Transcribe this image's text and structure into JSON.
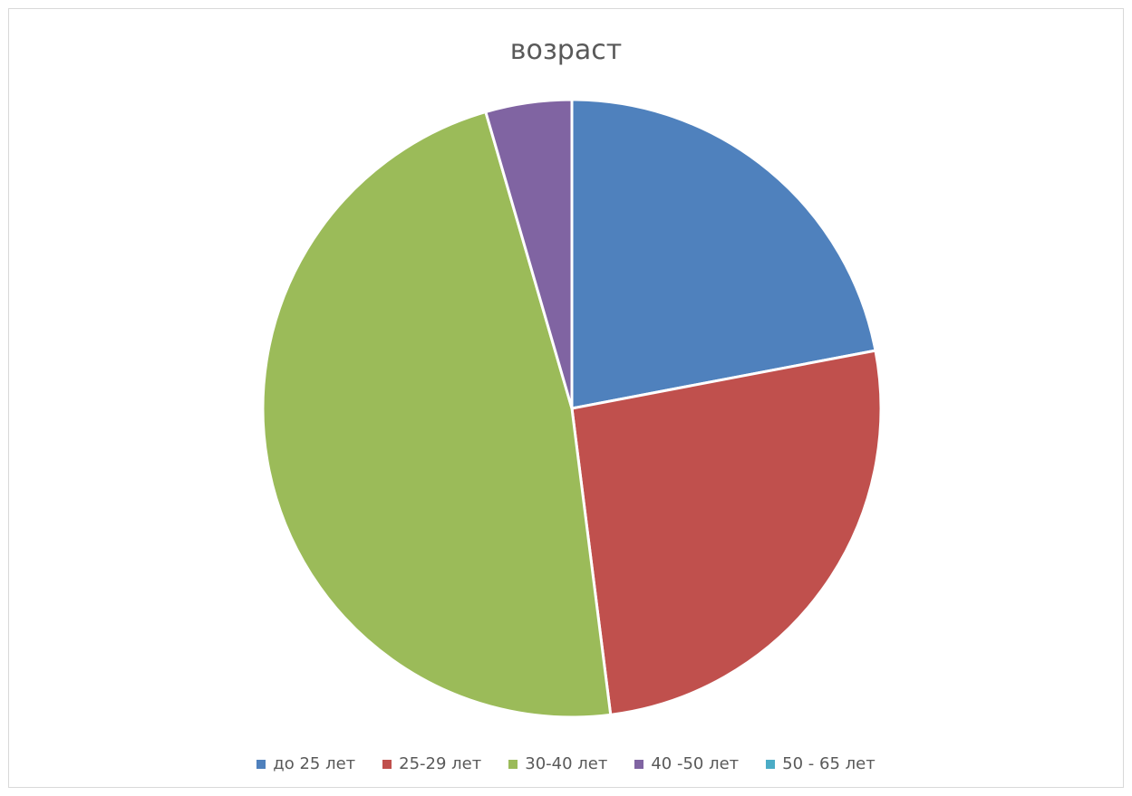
{
  "chart_data": {
    "type": "pie",
    "title": "возраст",
    "categories": [
      "до 25 лет",
      "25-29 лет",
      "30-40 лет",
      "40 -50 лет",
      "50 - 65 лет"
    ],
    "values": [
      22,
      26,
      47.5,
      4.5,
      0
    ],
    "colors": [
      "#4F81BD",
      "#C0504D",
      "#9BBB59",
      "#8064A2",
      "#4BACC6"
    ],
    "start_angle": "top (12 o'clock), clockwise",
    "legend_position": "bottom"
  }
}
